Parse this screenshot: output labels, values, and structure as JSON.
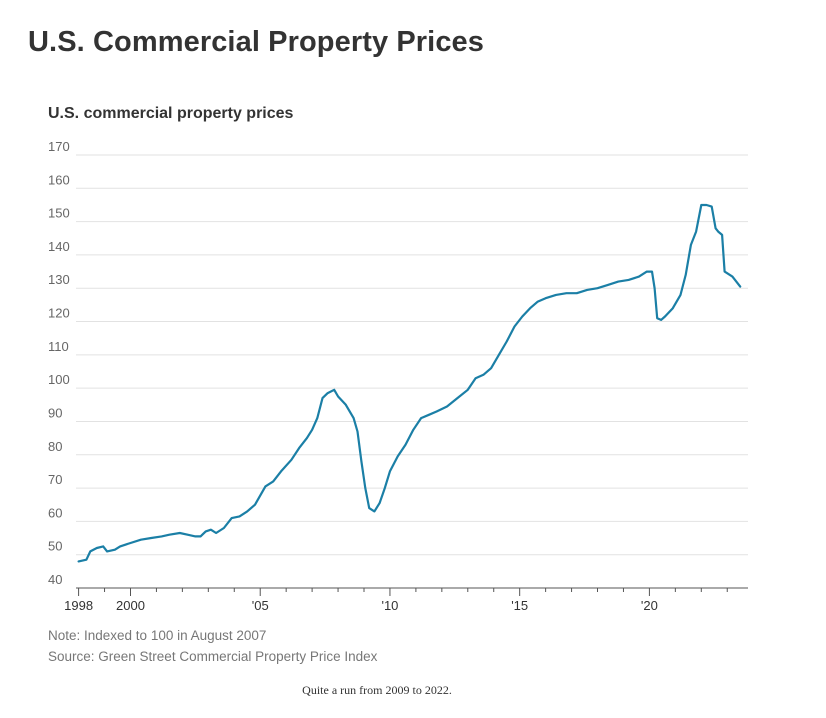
{
  "page": {
    "title": "U.S. Commercial Property Prices"
  },
  "chart_data": {
    "type": "line",
    "title": "U.S. commercial property prices",
    "xlabel": "",
    "ylabel": "",
    "ylim": [
      40,
      170
    ],
    "yticks": [
      170,
      160,
      150,
      140,
      130,
      120,
      110,
      100,
      90,
      80,
      70,
      60,
      50,
      40
    ],
    "xlim": [
      1997.9,
      2023.8
    ],
    "xticks": [
      {
        "value": 1998,
        "label": "1998"
      },
      {
        "value": 2000,
        "label": "2000"
      },
      {
        "value": 2005,
        "label": "'05"
      },
      {
        "value": 2010,
        "label": "'10"
      },
      {
        "value": 2015,
        "label": "'15"
      },
      {
        "value": 2020,
        "label": "'20"
      }
    ],
    "grid": true,
    "color": "#1b7fa6",
    "series": [
      {
        "x": [
          1998.0,
          1998.3,
          1998.45,
          1998.7,
          1998.95,
          1999.1,
          1999.4,
          1999.6,
          2000.0,
          2000.4,
          2000.8,
          2001.2,
          2001.5,
          2001.9,
          2002.2,
          2002.5,
          2002.7,
          2002.9,
          2003.1,
          2003.3,
          2003.6,
          2003.9,
          2004.2,
          2004.5,
          2004.8,
          2005.2,
          2005.5,
          2005.8,
          2006.2,
          2006.5,
          2006.8,
          2007.0,
          2007.2,
          2007.4,
          2007.6,
          2007.85,
          2008.0,
          2008.3,
          2008.6,
          2008.75,
          2008.9,
          2009.05,
          2009.2,
          2009.4,
          2009.6,
          2009.8,
          2010.0,
          2010.3,
          2010.6,
          2010.9,
          2011.2,
          2011.5,
          2011.8,
          2012.2,
          2012.6,
          2013.0,
          2013.3,
          2013.6,
          2013.9,
          2014.2,
          2014.5,
          2014.8,
          2015.1,
          2015.4,
          2015.7,
          2016.0,
          2016.4,
          2016.8,
          2017.2,
          2017.6,
          2018.0,
          2018.4,
          2018.8,
          2019.2,
          2019.6,
          2019.9,
          2020.1,
          2020.2,
          2020.3,
          2020.45,
          2020.6,
          2020.9,
          2021.2,
          2021.4,
          2021.6,
          2021.8,
          2022.0,
          2022.2,
          2022.4,
          2022.55,
          2022.65,
          2022.8,
          2022.9,
          2023.2,
          2023.5
        ],
        "values": [
          48,
          48.5,
          51,
          52,
          52.5,
          51,
          51.5,
          52.5,
          53.5,
          54.5,
          55,
          55.5,
          56,
          56.5,
          56,
          55.5,
          55.5,
          57,
          57.5,
          56.5,
          58,
          61,
          61.5,
          63,
          65,
          70.5,
          72,
          75,
          78.5,
          82,
          85,
          87.5,
          91,
          97,
          98.5,
          99.5,
          97.5,
          95,
          91,
          87,
          78,
          70,
          64,
          63,
          65.5,
          70,
          75,
          79.5,
          83,
          87.5,
          91,
          92,
          93,
          94.5,
          97,
          99.5,
          103,
          104,
          106,
          110,
          114,
          118.5,
          121.5,
          124,
          126,
          127,
          128,
          128.5,
          128.5,
          129.5,
          130,
          131,
          132,
          132.5,
          133.5,
          135,
          135,
          130,
          121,
          120.5,
          121.5,
          124,
          128,
          134,
          143,
          147,
          155,
          155,
          154.5,
          148,
          147,
          146,
          135,
          133.5,
          130.5
        ]
      }
    ],
    "notes": [
      "Note: Indexed to 100 in August 2007",
      "Source: Green Street Commercial Property Price Index"
    ]
  },
  "caption": "Quite a run from 2009 to 2022."
}
